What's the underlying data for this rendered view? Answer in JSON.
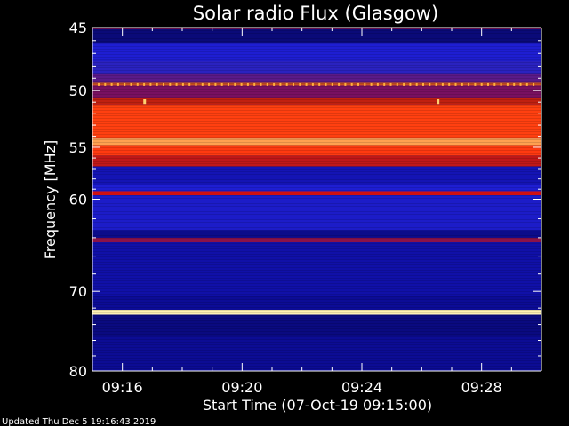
{
  "chart_data": {
    "type": "heatmap",
    "title": "Solar radio Flux (Glasgow)",
    "xlabel": "Start Time (07-Oct-19 09:15:00)",
    "ylabel": "Frequency [MHz]",
    "y_ticks": [
      45,
      50,
      55,
      60,
      70,
      80
    ],
    "x_ticks": [
      "09:16",
      "09:20",
      "09:24",
      "09:28"
    ],
    "x_tick_minutes": [
      16,
      20,
      24,
      28
    ],
    "x_range_minutes": [
      15,
      30
    ],
    "y_range_mhz": [
      45,
      80
    ],
    "y_scale": "log",
    "bands": [
      {
        "from": 44.8,
        "to": 45.1,
        "color": "#c81818"
      },
      {
        "from": 45.1,
        "to": 46.2,
        "color": "#0a0a78"
      },
      {
        "from": 46.2,
        "to": 47.6,
        "color": "#1e1ed2"
      },
      {
        "from": 47.6,
        "to": 48.6,
        "color": "#2a22c0"
      },
      {
        "from": 48.6,
        "to": 49.3,
        "color": "#5a1a88"
      },
      {
        "from": 49.3,
        "to": 49.6,
        "color": "#c85020"
      },
      {
        "from": 49.6,
        "to": 50.6,
        "color": "#781060"
      },
      {
        "from": 50.6,
        "to": 51.2,
        "color": "#c02010"
      },
      {
        "from": 51.2,
        "to": 54.2,
        "color": "#ff4010"
      },
      {
        "from": 54.2,
        "to": 54.8,
        "color": "#ffa050"
      },
      {
        "from": 54.8,
        "to": 55.8,
        "color": "#ff3a10"
      },
      {
        "from": 55.8,
        "to": 56.8,
        "color": "#c01818"
      },
      {
        "from": 56.8,
        "to": 58.6,
        "color": "#1414b4"
      },
      {
        "from": 58.6,
        "to": 59.2,
        "color": "#1e1ed2"
      },
      {
        "from": 59.2,
        "to": 59.6,
        "color": "#d01010"
      },
      {
        "from": 59.6,
        "to": 63.2,
        "color": "#1c1cc8"
      },
      {
        "from": 63.2,
        "to": 64.0,
        "color": "#0c0c8a"
      },
      {
        "from": 64.0,
        "to": 64.5,
        "color": "#8a1248"
      },
      {
        "from": 64.5,
        "to": 70.5,
        "color": "#1010a8"
      },
      {
        "from": 70.5,
        "to": 72.2,
        "color": "#0c0c96"
      },
      {
        "from": 72.2,
        "to": 72.8,
        "color": "#fff2b4"
      },
      {
        "from": 72.8,
        "to": 75.5,
        "color": "#0a0a80"
      },
      {
        "from": 75.5,
        "to": 80.2,
        "color": "#0c0c94"
      }
    ],
    "footer": "Updated Thu Dec  5 19:16:43 2019"
  }
}
